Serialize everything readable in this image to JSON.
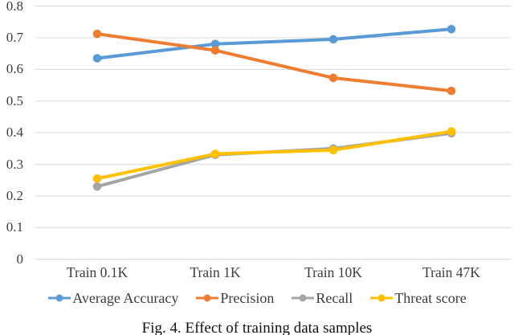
{
  "figure": {
    "caption": "Fig. 4. Effect of training data samples"
  },
  "chart_data": {
    "type": "line",
    "title": "",
    "xlabel": "",
    "ylabel": "",
    "categories": [
      "Train 0.1K",
      "Train 1K",
      "Train 10K",
      "Train 47K"
    ],
    "series": [
      {
        "name": "Average Accuracy",
        "color": "#5B9BD5",
        "values": [
          0.635,
          0.68,
          0.695,
          0.727
        ]
      },
      {
        "name": "Precision",
        "color": "#ED7D31",
        "values": [
          0.712,
          0.66,
          0.573,
          0.532
        ]
      },
      {
        "name": "Recall",
        "color": "#A5A5A5",
        "values": [
          0.23,
          0.33,
          0.35,
          0.398
        ]
      },
      {
        "name": "Threat score",
        "color": "#FFC000",
        "values": [
          0.255,
          0.333,
          0.345,
          0.404
        ]
      }
    ],
    "ylim": [
      0,
      0.8
    ],
    "ytick_labels": [
      "0",
      "0.1",
      "0.2",
      "0.3",
      "0.4",
      "0.5",
      "0.6",
      "0.7",
      "0.8"
    ],
    "grid": true,
    "gridline_color": "#D9D9D9",
    "axis_label_color": "#3d3d3d",
    "legend_position": "bottom",
    "marker": "circle"
  }
}
